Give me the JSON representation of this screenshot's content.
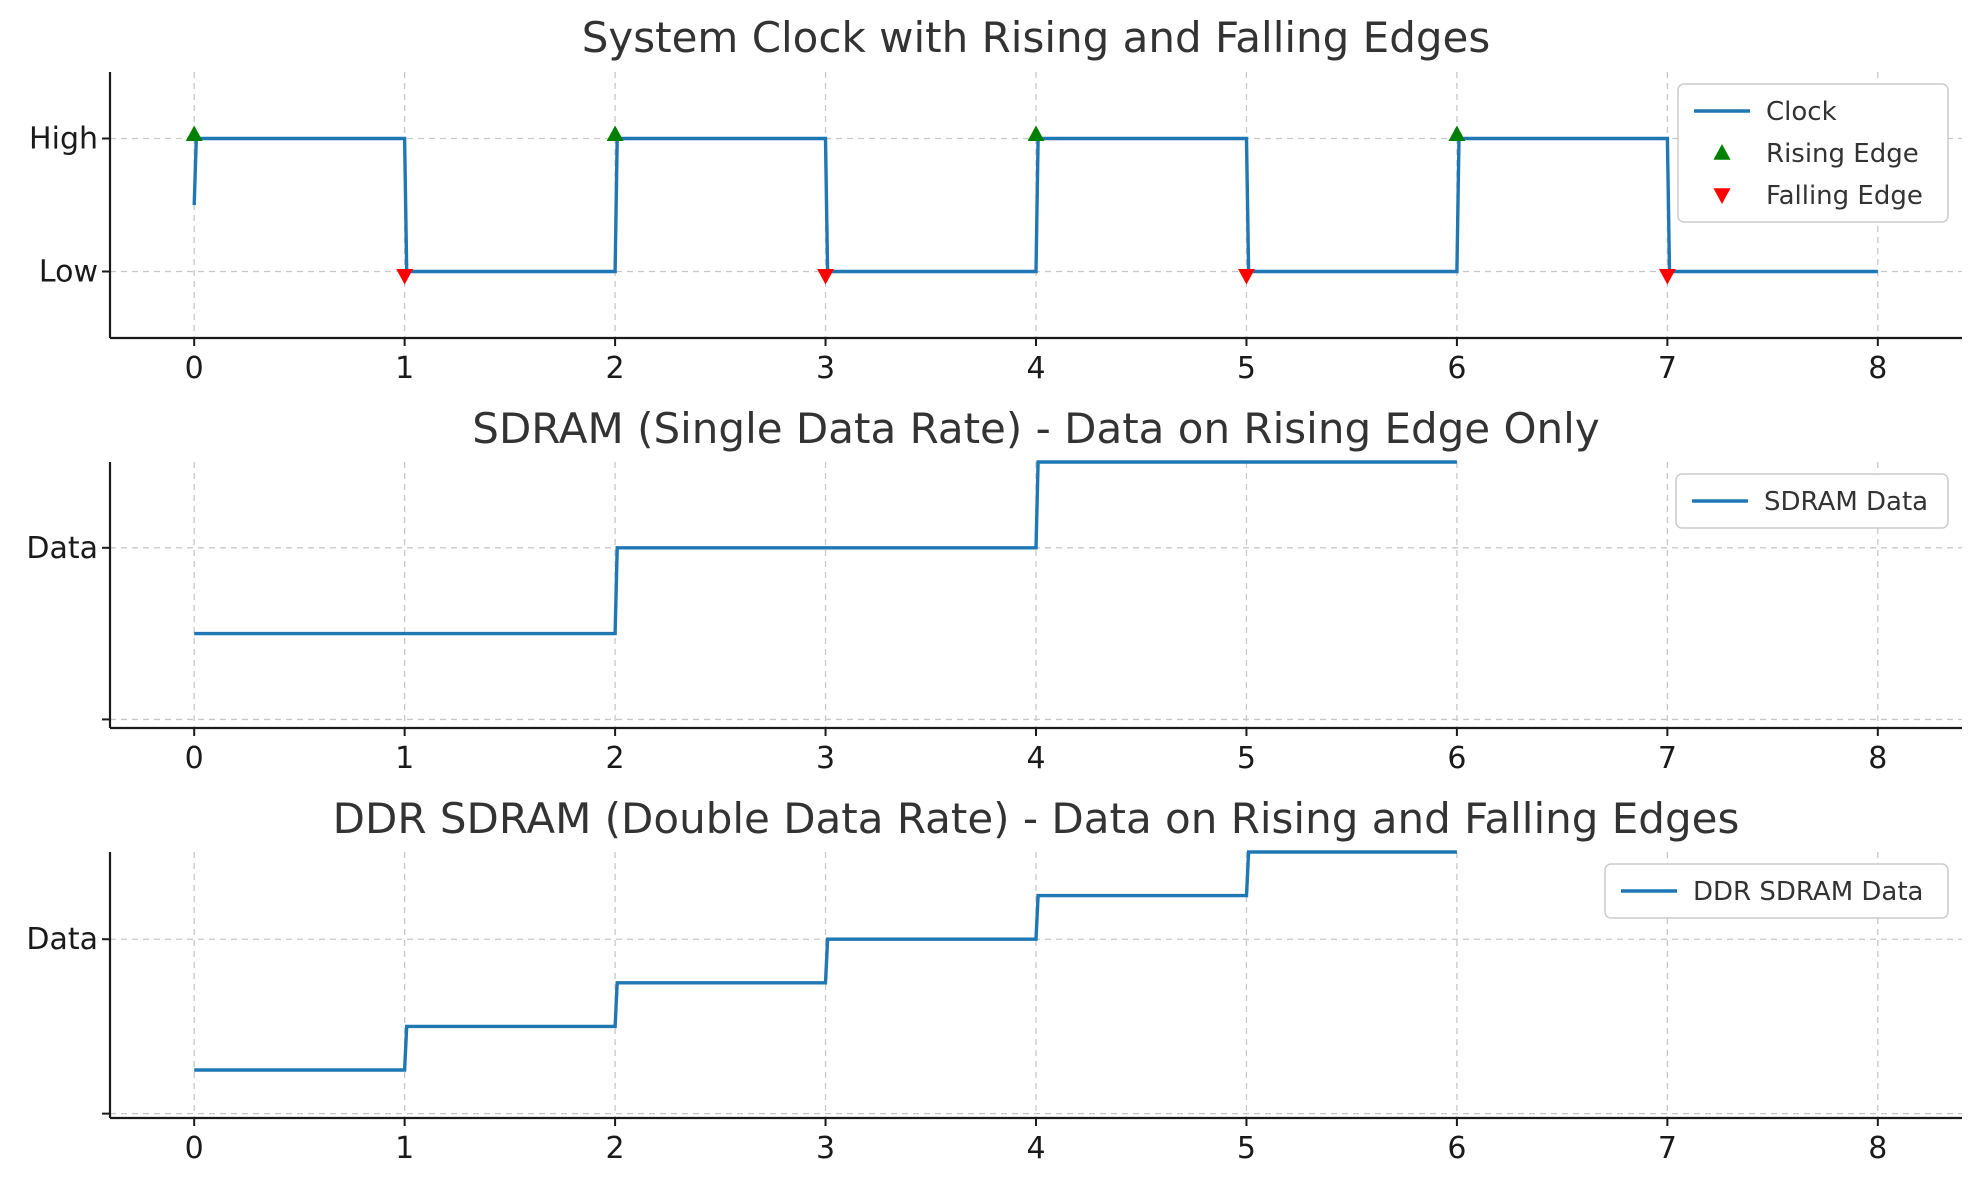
{
  "chart_data": [
    {
      "type": "line",
      "title": "System Clock with Rising and Falling Edges",
      "xlabel": "",
      "ylabel": "",
      "xlim": [
        -0.4,
        8.4
      ],
      "ylim": [
        -0.5,
        1.5
      ],
      "xticks": [
        0,
        1,
        2,
        3,
        4,
        5,
        6,
        7,
        8
      ],
      "xtick_labels": [
        "0",
        "1",
        "2",
        "3",
        "4",
        "5",
        "6",
        "7",
        "8"
      ],
      "yticks": [
        0,
        1
      ],
      "ytick_labels": [
        "Low",
        "High"
      ],
      "grid": true,
      "legend_position": "top-right",
      "series": [
        {
          "name": "Clock",
          "kind": "line",
          "color": "#1f77b4",
          "x": [
            0,
            0.01,
            1,
            1.01,
            2,
            2.01,
            3,
            3.01,
            4,
            4.01,
            5,
            5.01,
            6,
            6.01,
            7,
            7.01,
            8
          ],
          "y": [
            0.5,
            1,
            1,
            0,
            0,
            1,
            1,
            0,
            0,
            1,
            1,
            0,
            0,
            1,
            1,
            0,
            0
          ]
        },
        {
          "name": "Rising Edge",
          "kind": "marker",
          "marker": "triangle-up",
          "color": "#008000",
          "x": [
            0,
            2,
            4,
            6
          ],
          "y": [
            1,
            1,
            1,
            1
          ]
        },
        {
          "name": "Falling Edge",
          "kind": "marker",
          "marker": "triangle-down",
          "color": "#ff0000",
          "x": [
            1,
            3,
            5,
            7
          ],
          "y": [
            0,
            0,
            0,
            0
          ]
        }
      ]
    },
    {
      "type": "line",
      "title": "SDRAM (Single Data Rate) - Data on Rising Edge Only",
      "xlabel": "",
      "ylabel": "",
      "xlim": [
        -0.4,
        8.4
      ],
      "ylim": [
        -0.1,
        3.0
      ],
      "xticks": [
        0,
        1,
        2,
        3,
        4,
        5,
        6,
        7,
        8
      ],
      "xtick_labels": [
        "0",
        "1",
        "2",
        "3",
        "4",
        "5",
        "6",
        "7",
        "8"
      ],
      "yticks": [
        0,
        2
      ],
      "ytick_labels": [
        "",
        "Data"
      ],
      "grid": true,
      "legend_position": "top-right",
      "series": [
        {
          "name": "SDRAM Data",
          "kind": "step",
          "color": "#1f77b4",
          "x": [
            0,
            2,
            2.01,
            4,
            4.01,
            6
          ],
          "y": [
            1,
            1,
            2,
            2,
            3,
            3
          ]
        }
      ]
    },
    {
      "type": "line",
      "title": "DDR SDRAM (Double Data Rate) - Data on Rising and Falling Edges",
      "xlabel": "",
      "ylabel": "",
      "xlim": [
        -0.4,
        8.4
      ],
      "ylim": [
        -0.1,
        6.0
      ],
      "xticks": [
        0,
        1,
        2,
        3,
        4,
        5,
        6,
        7,
        8
      ],
      "xtick_labels": [
        "0",
        "1",
        "2",
        "3",
        "4",
        "5",
        "6",
        "7",
        "8"
      ],
      "yticks": [
        0,
        4
      ],
      "ytick_labels": [
        "",
        "Data"
      ],
      "grid": true,
      "legend_position": "top-right",
      "series": [
        {
          "name": "DDR SDRAM Data",
          "kind": "step",
          "color": "#1f77b4",
          "x": [
            0,
            1,
            1.01,
            2,
            2.01,
            3,
            3.01,
            4,
            4.01,
            5,
            5.01,
            6
          ],
          "y": [
            1,
            1,
            2,
            2,
            3,
            3,
            4,
            4,
            5,
            5,
            6,
            6
          ]
        }
      ]
    }
  ]
}
